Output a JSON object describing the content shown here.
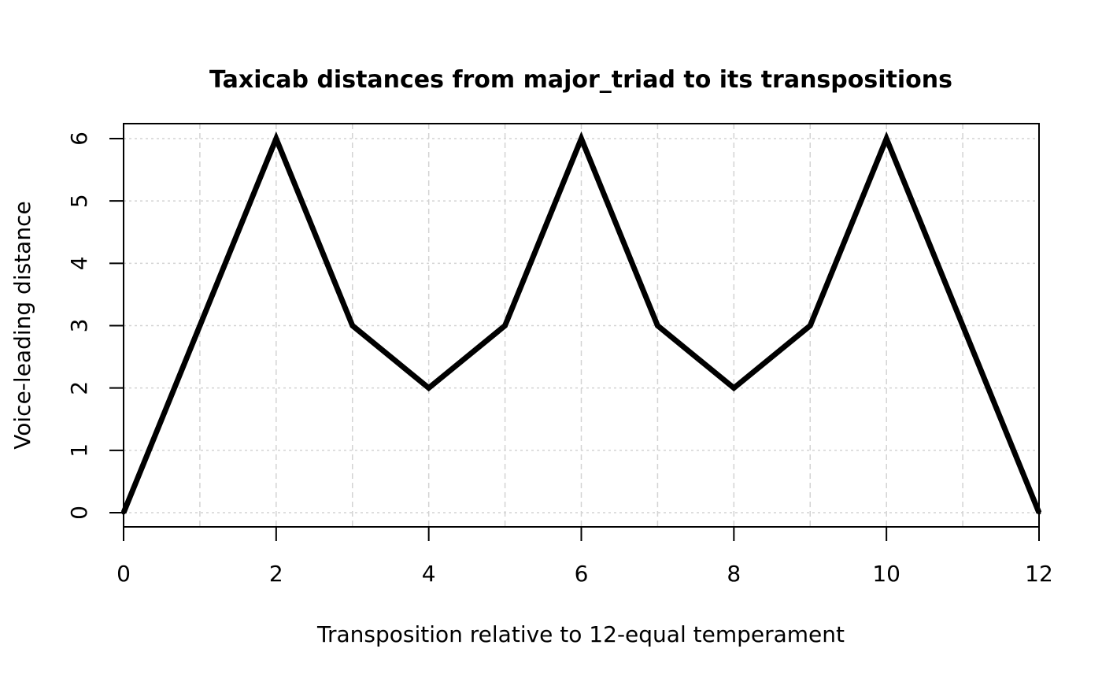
{
  "chart_data": {
    "type": "line",
    "title": "Taxicab distances from major_triad to its transpositions",
    "xlabel": "Transposition relative to 12-equal temperament",
    "ylabel": "Voice-leading distance",
    "xlim": [
      0,
      12
    ],
    "ylim": [
      0,
      6
    ],
    "x_ticks": [
      "0",
      "2",
      "4",
      "6",
      "8",
      "10",
      "12"
    ],
    "y_ticks": [
      "0",
      "1",
      "2",
      "3",
      "4",
      "5",
      "6"
    ],
    "grid": true,
    "series": [
      {
        "x": [
          0,
          1,
          2,
          3,
          4,
          5,
          6,
          7,
          8,
          9,
          10,
          11,
          12
        ],
        "y": [
          0,
          3,
          6,
          3,
          2,
          3,
          6,
          3,
          2,
          3,
          6,
          3,
          0
        ]
      }
    ],
    "line_color": "#000000",
    "grid_color": "#d3d3d3"
  }
}
